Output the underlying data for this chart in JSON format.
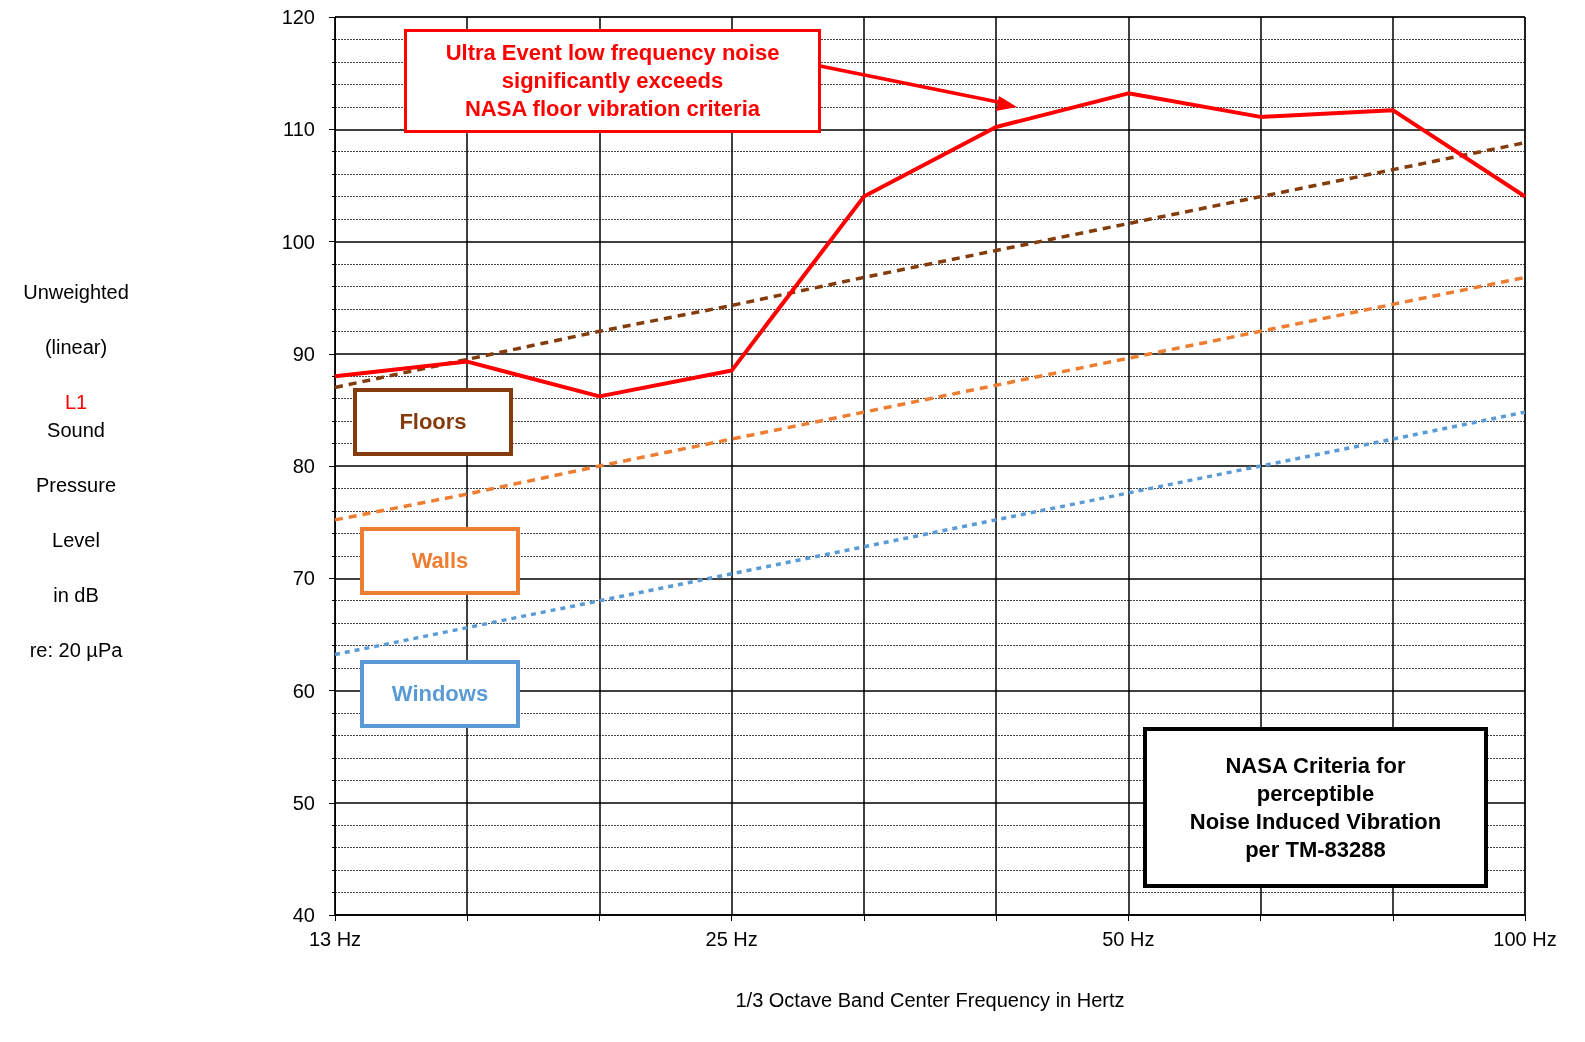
{
  "chart_data": {
    "type": "line",
    "xlabel": "1/3 Octave Band Center Frequency in Hertz",
    "ylabel": "Unweighted\n(linear)\nSound\nPressure\nLevel\nin dB\nre: 20 µPa",
    "categories": [
      "13 Hz",
      null,
      null,
      "25 Hz",
      null,
      null,
      "50 Hz",
      null,
      null,
      "100 Hz"
    ],
    "series": [
      {
        "name": "L1",
        "color": "#ff0000",
        "line_style": "solid",
        "values": [
          88,
          89.3,
          86.2,
          88.5,
          104,
          110.2,
          113.2,
          111.1,
          111.7,
          104
        ]
      },
      {
        "name": "Floors",
        "color": "#843c0c",
        "line_style": "dashed",
        "values": [
          87,
          89.5,
          92,
          94.3,
          96.8,
          99.2,
          101.6,
          104,
          106.4,
          108.8
        ]
      },
      {
        "name": "Walls",
        "color": "#ed7d31",
        "line_style": "dashed",
        "values": [
          75.2,
          77.5,
          80,
          82.4,
          84.8,
          87.2,
          89.6,
          92,
          94.4,
          96.8
        ]
      },
      {
        "name": "Windows",
        "color": "#5b9bd5",
        "line_style": "dotted",
        "values": [
          63.2,
          65.6,
          68,
          70.4,
          72.8,
          75.2,
          77.6,
          80,
          82.4,
          84.8
        ]
      }
    ],
    "ylim": [
      40,
      120
    ],
    "yticks": [
      40,
      50,
      60,
      70,
      80,
      90,
      100,
      110,
      120
    ],
    "grid": true,
    "marker": "none",
    "annotations": [
      "Ultra Event low frequency noise\nsignificantly exceeds\nNASA floor vibration criteria",
      "NASA Criteria for\nperceptible\nNoise Induced Vibration\nper TM-83288"
    ]
  }
}
